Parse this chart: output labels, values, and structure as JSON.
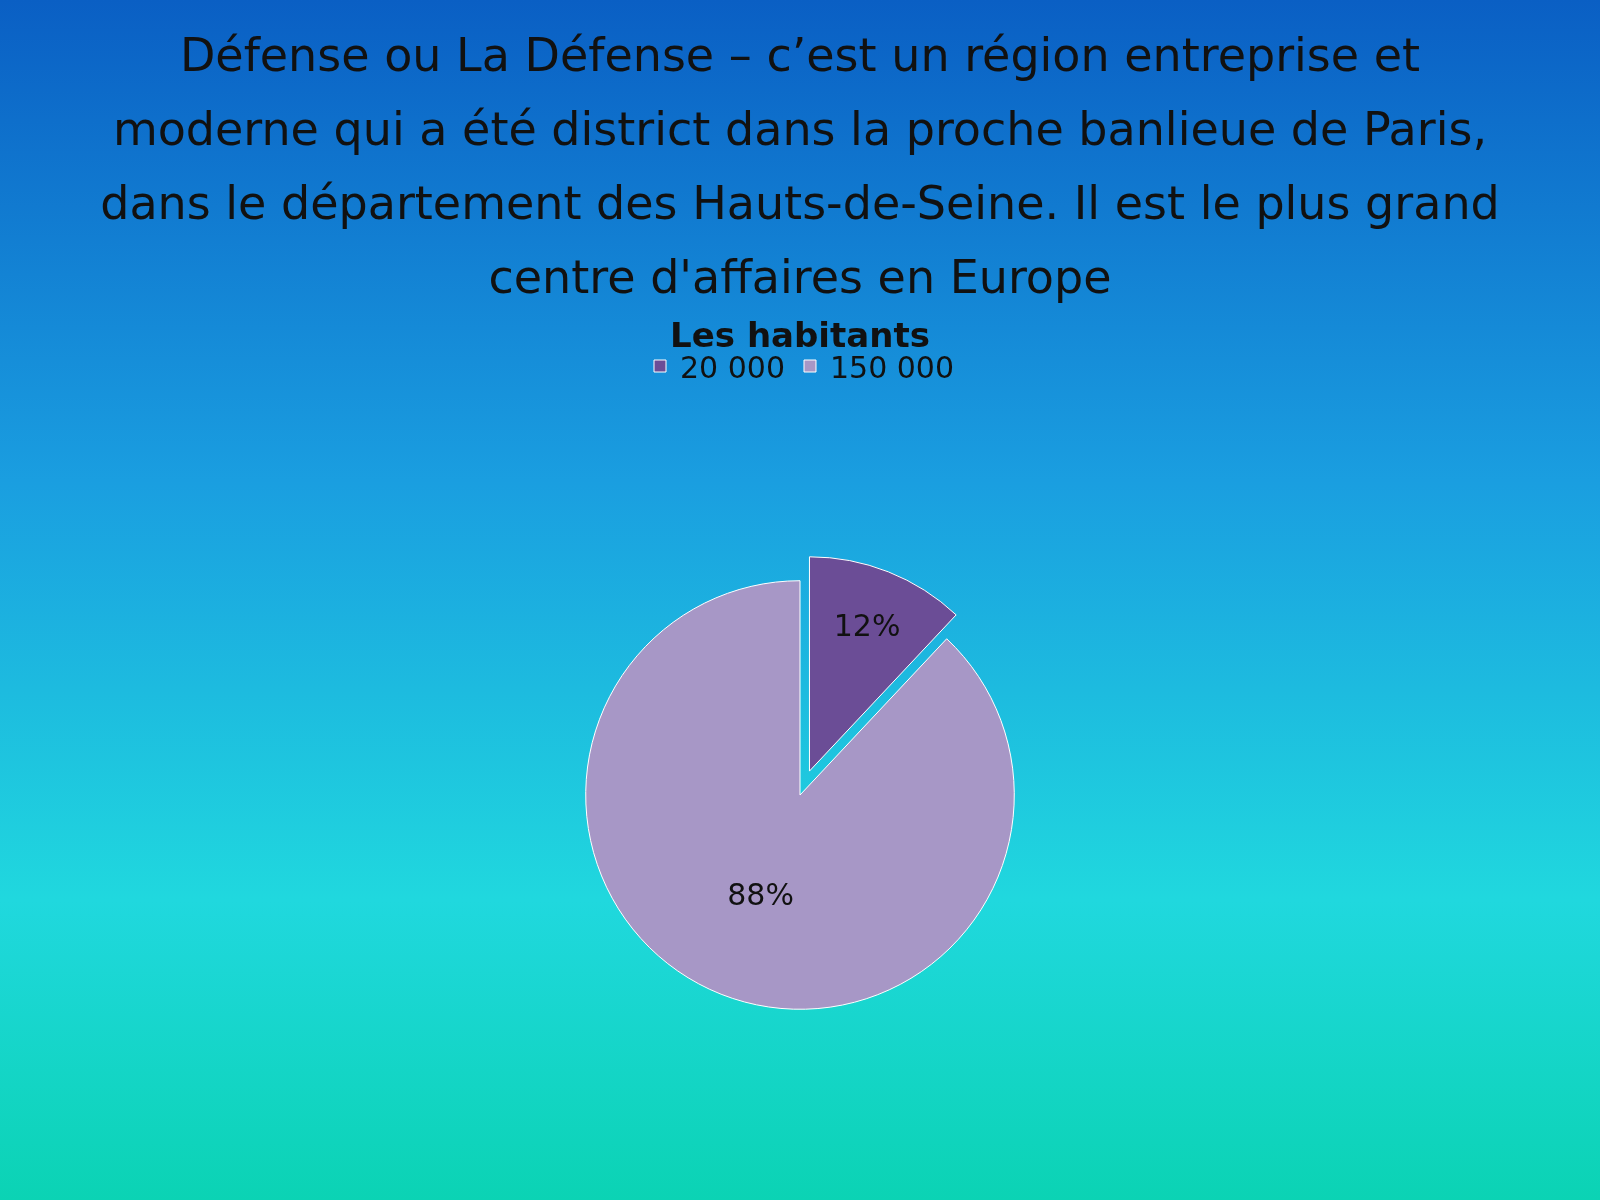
{
  "chart_data": {
    "type": "pie",
    "title": "Défense ou La Défense – c’est un région entreprise et moderne qui a été district dans la proche banlieue de Paris, dans le département des Hauts-de-Seine. Il est le plus grand centre d'affaires en Europe",
    "subtitle": "Les habitants",
    "categories": [
      "20 000",
      "150 000"
    ],
    "values": [
      12,
      88
    ],
    "colors": [
      "#6b4d96",
      "#a797c6"
    ],
    "value_labels": [
      "12%",
      "88%"
    ],
    "legend": "top"
  }
}
